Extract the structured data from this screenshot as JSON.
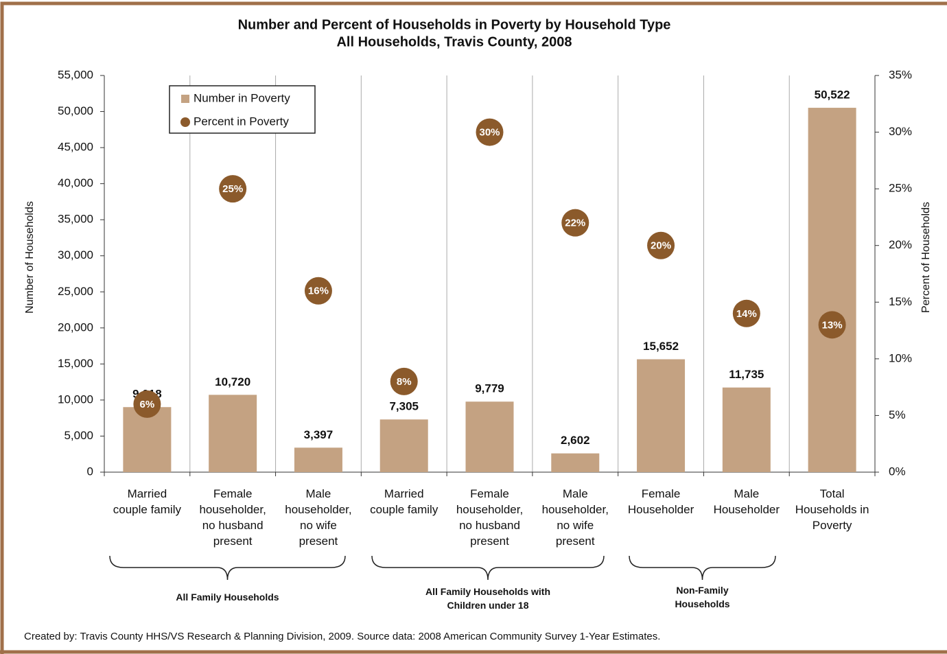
{
  "chart_data": {
    "type": "bar",
    "title": "Number and Percent of Households in Poverty by Household Type",
    "subtitle": "All Households, Travis County, 2008",
    "categories": [
      "Married\ncouple family",
      "Female\nhouseholder,\nno husband\npresent",
      "Male\nhouseholder,\nno wife\npresent",
      "Married\ncouple family",
      "Female\nhouseholder,\nno husband\npresent",
      "Male\nhouseholder,\nno wife\npresent",
      "Female\nHouseholder",
      "Male\nHouseholder",
      "Total\nHouseholds in\nPoverty"
    ],
    "groups": [
      "All Family Households",
      "All Family Households with\nChildren under 18",
      "Non-Family\nHouseholds"
    ],
    "series": [
      {
        "name": "Number in Poverty",
        "color": "#c4a282",
        "values": [
          9018,
          10720,
          3397,
          7305,
          9779,
          2602,
          15652,
          11735,
          50522
        ],
        "value_labels": [
          "9,018",
          "10,720",
          "3,397",
          "7,305",
          "9,779",
          "2,602",
          "15,652",
          "11,735",
          "50,522"
        ]
      },
      {
        "name": "Percent in Poverty",
        "color": "#8b5a2b",
        "axis": "y2",
        "values": [
          6,
          25,
          16,
          8,
          30,
          22,
          20,
          14,
          13
        ],
        "value_labels": [
          "6%",
          "25%",
          "16%",
          "8%",
          "30%",
          "22%",
          "20%",
          "14%",
          "13%"
        ]
      }
    ],
    "ylabel": "Number of Households",
    "y2label": "Percent of Households",
    "ylim": [
      0,
      55000
    ],
    "yticks": [
      0,
      {
        "value": 5000,
        "label": "5,000"
      },
      {
        "value": 10000,
        "label": "10,000"
      },
      {
        "value": 15000,
        "label": "15,000"
      },
      {
        "value": 20000,
        "label": "20,000"
      },
      {
        "value": 25000,
        "label": "25,000"
      },
      {
        "value": 30000,
        "label": "30,000"
      },
      {
        "value": 35000,
        "label": "35,000"
      },
      {
        "value": 40000,
        "label": "40,000"
      },
      {
        "value": 45000,
        "label": "45,000"
      },
      {
        "value": 50000,
        "label": "50,000"
      },
      {
        "value": 55000,
        "label": "55,000"
      }
    ],
    "y2lim": [
      0,
      35
    ],
    "y2ticks": [
      {
        "value": 0,
        "label": "0%"
      },
      {
        "value": 5,
        "label": "5%"
      },
      {
        "value": 10,
        "label": "10%"
      },
      {
        "value": 15,
        "label": "15%"
      },
      {
        "value": 20,
        "label": "20%"
      },
      {
        "value": 25,
        "label": "25%"
      },
      {
        "value": 30,
        "label": "30%"
      },
      {
        "value": 35,
        "label": "35%"
      }
    ],
    "legend": "upper left",
    "source": "Created by: Travis County HHS/VS Research & Planning Division, 2009.   Source data: 2008 American Community Survey 1-Year Estimates."
  }
}
